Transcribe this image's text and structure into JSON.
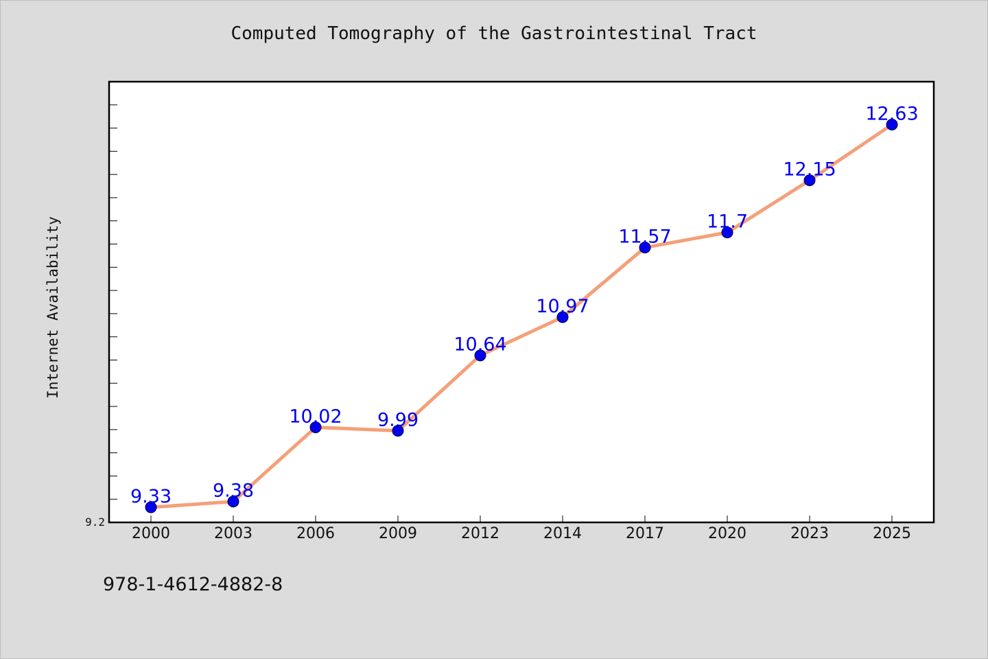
{
  "chart_data": {
    "type": "line",
    "title": "Computed Tomography of the Gastrointestinal Tract",
    "xlabel": "",
    "ylabel": "Internet Availability",
    "categories": [
      "2000",
      "2003",
      "2006",
      "2009",
      "2012",
      "2014",
      "2017",
      "2020",
      "2023",
      "2025"
    ],
    "series": [
      {
        "values": [
          9.33,
          9.38,
          10.02,
          9.99,
          10.64,
          10.97,
          11.57,
          11.7,
          12.15,
          12.63
        ],
        "line_color": "#f4a07a",
        "marker_color": "#0000ee"
      }
    ],
    "y_tick_labels": [
      "9.2"
    ],
    "ylim": [
      9.2,
      13.0
    ],
    "grid": false,
    "legend": "none"
  },
  "footer": {
    "code": "978-1-4612-4882-8"
  },
  "colors": {
    "background": "#dcdcdc",
    "plot_background": "#ffffff",
    "data_label": "#0000ee"
  }
}
